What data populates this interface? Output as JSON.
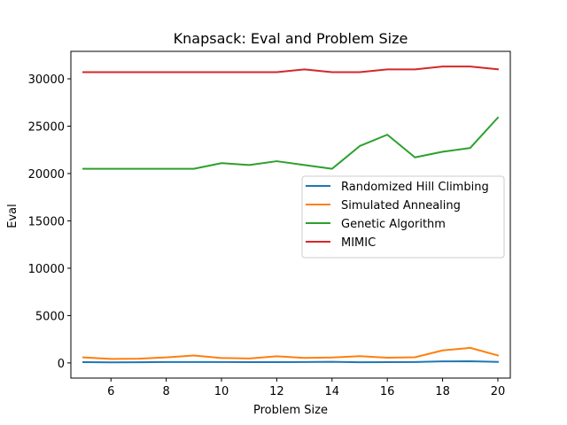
{
  "chart_data": {
    "type": "line",
    "title": "Knapsack: Eval and Problem Size",
    "xlabel": "Problem Size",
    "ylabel": "Eval",
    "x": [
      5,
      6,
      7,
      8,
      9,
      10,
      11,
      12,
      13,
      14,
      15,
      16,
      17,
      18,
      19,
      20
    ],
    "xlim": [
      4.55,
      20.45
    ],
    "ylim": [
      -1600,
      32900
    ],
    "xticks": [
      6,
      8,
      10,
      12,
      14,
      16,
      18,
      20
    ],
    "yticks": [
      0,
      5000,
      10000,
      15000,
      20000,
      25000,
      30000
    ],
    "grid": false,
    "legend_position": "center-right",
    "series": [
      {
        "name": "Randomized Hill Climbing",
        "color": "#1f77b4",
        "values": [
          80,
          60,
          70,
          90,
          90,
          100,
          80,
          80,
          100,
          120,
          70,
          80,
          90,
          160,
          180,
          110
        ]
      },
      {
        "name": "Simulated Annealing",
        "color": "#ff7f0e",
        "values": [
          580,
          420,
          440,
          590,
          780,
          520,
          470,
          700,
          530,
          570,
          720,
          550,
          600,
          1320,
          1590,
          790
        ]
      },
      {
        "name": "Genetic Algorithm",
        "color": "#2ca02c",
        "values": [
          20500,
          20500,
          20500,
          20500,
          20500,
          21100,
          20900,
          21300,
          20900,
          20500,
          22900,
          24100,
          21700,
          22300,
          22700,
          25900
        ]
      },
      {
        "name": "MIMIC",
        "color": "#d62728",
        "values": [
          30700,
          30700,
          30700,
          30700,
          30700,
          30700,
          30700,
          30700,
          31000,
          30700,
          30700,
          31000,
          31000,
          31300,
          31300,
          31000
        ]
      }
    ]
  }
}
